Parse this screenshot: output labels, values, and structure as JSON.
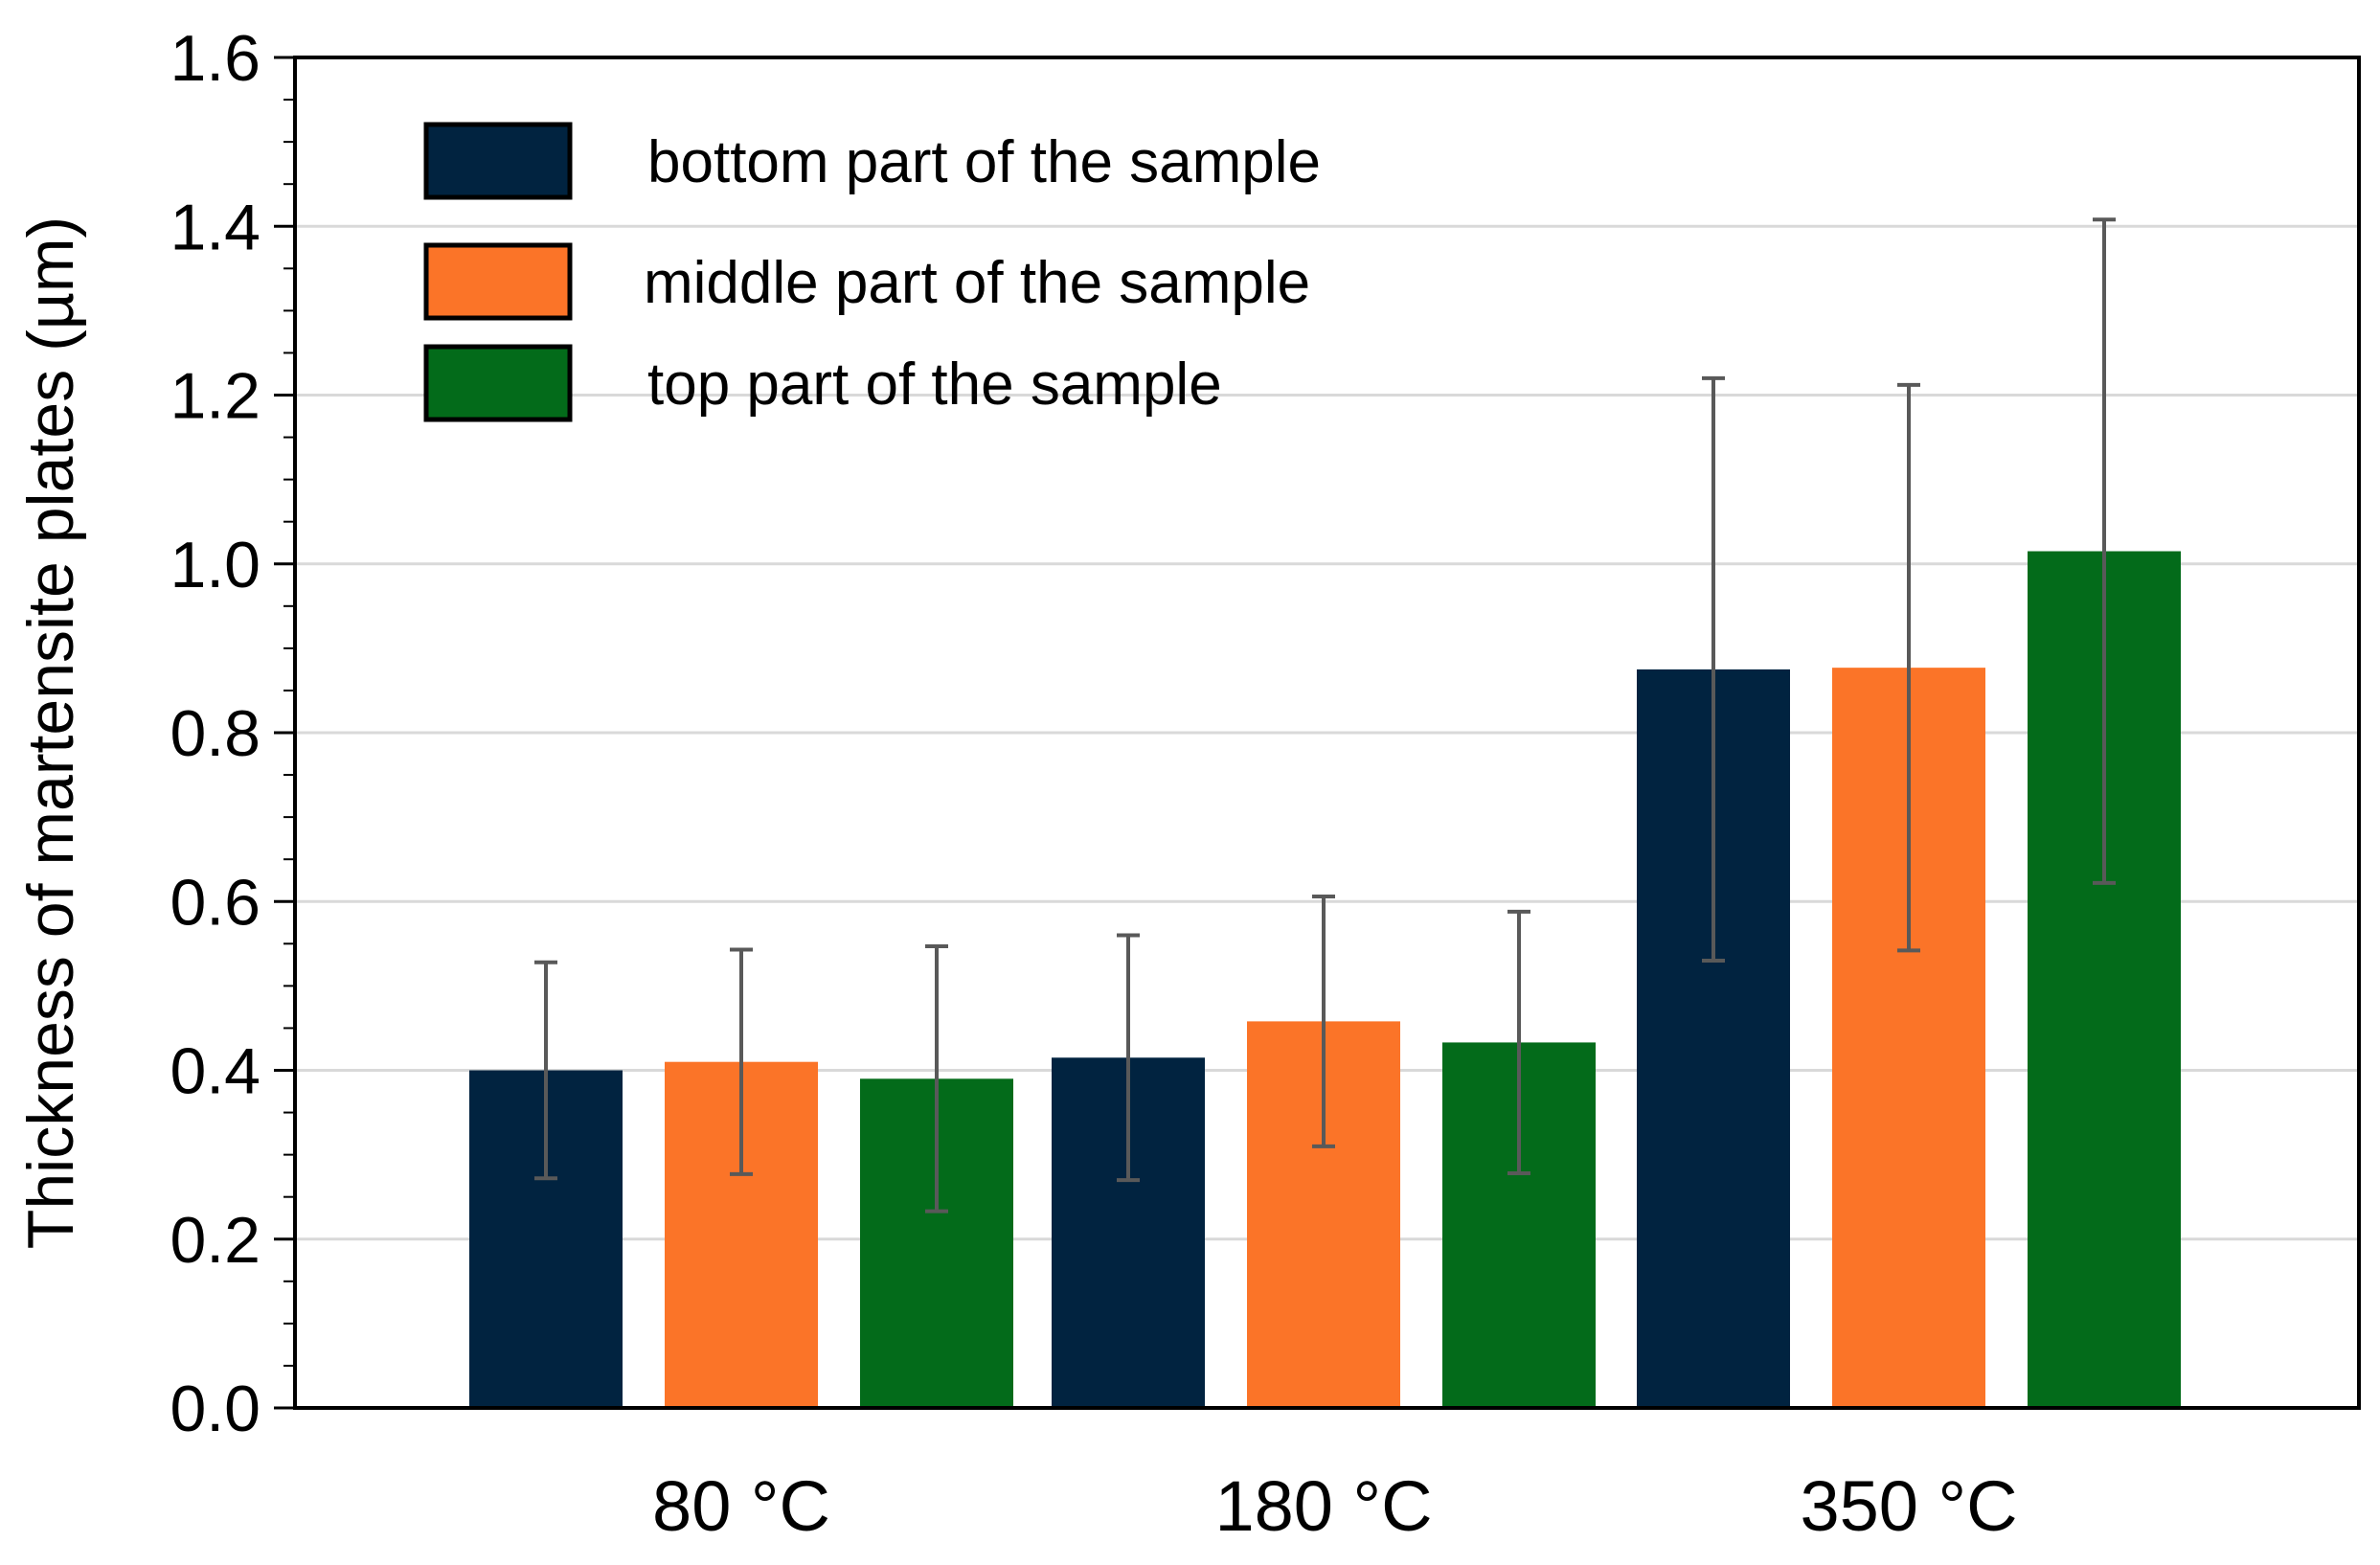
{
  "chart_data": {
    "type": "bar",
    "title": "",
    "xlabel": "",
    "ylabel": "Thickness of martensite plates (µm)",
    "ylim": [
      0,
      1.6
    ],
    "yticks": [
      "0.0",
      "0.2",
      "0.4",
      "0.6",
      "0.8",
      "1.0",
      "1.2",
      "1.4",
      "1.6"
    ],
    "grid": true,
    "legend_position": "top-left",
    "categories": [
      "80 °C",
      "180 °C",
      "350 °C"
    ],
    "series": [
      {
        "name": "bottom part of the sample",
        "color": "#012340",
        "values": [
          0.4,
          0.415,
          0.875
        ],
        "errors": [
          0.128,
          0.145,
          0.345
        ]
      },
      {
        "name": "middle part of the sample",
        "color": "#FB7428",
        "values": [
          0.41,
          0.458,
          0.877
        ],
        "errors": [
          0.133,
          0.148,
          0.335
        ]
      },
      {
        "name": "top part of the sample",
        "color": "#036B1A",
        "values": [
          0.39,
          0.433,
          1.015
        ],
        "errors": [
          0.157,
          0.155,
          0.393
        ]
      }
    ]
  }
}
